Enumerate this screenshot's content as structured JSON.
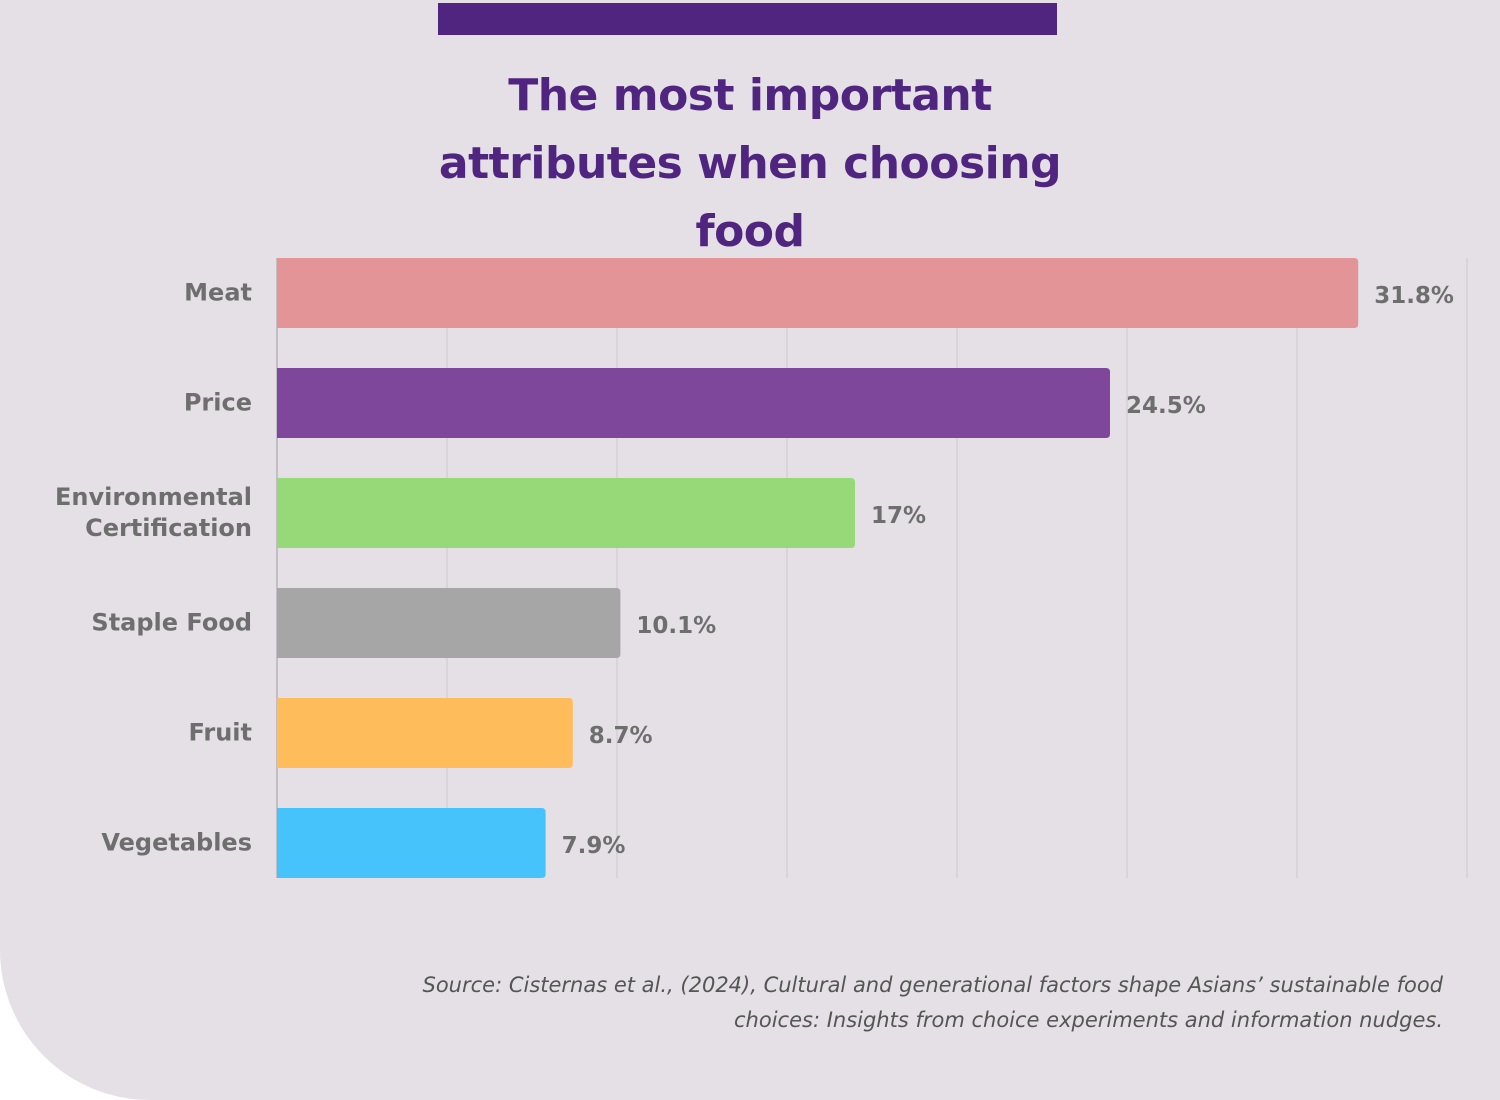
{
  "chart_data": {
    "type": "bar",
    "orientation": "horizontal",
    "title": "The most important attributes when choosing food",
    "categories": [
      "Meat",
      "Price",
      "Environmental Certification",
      "Staple Food",
      "Fruit",
      "Vegetables"
    ],
    "values": [
      31.8,
      24.5,
      17,
      10.1,
      8.7,
      7.9
    ],
    "value_labels": [
      "31.8%",
      "24.5%",
      "17%",
      "10.1%",
      "8.7%",
      "7.9%"
    ],
    "colors": [
      "#e29496",
      "#7e479b",
      "#97d978",
      "#a6a6a6",
      "#ffbc5b",
      "#47c3fc"
    ],
    "xlim": [
      0,
      35
    ],
    "xticks": [
      0,
      5,
      10,
      15,
      20,
      25,
      30,
      35
    ],
    "grid": true,
    "source": "Source: Cisternas et al., (2024), Cultural and generational factors shape Asians’ sustainable food choices: Insights from choice experiments and information nudges."
  }
}
